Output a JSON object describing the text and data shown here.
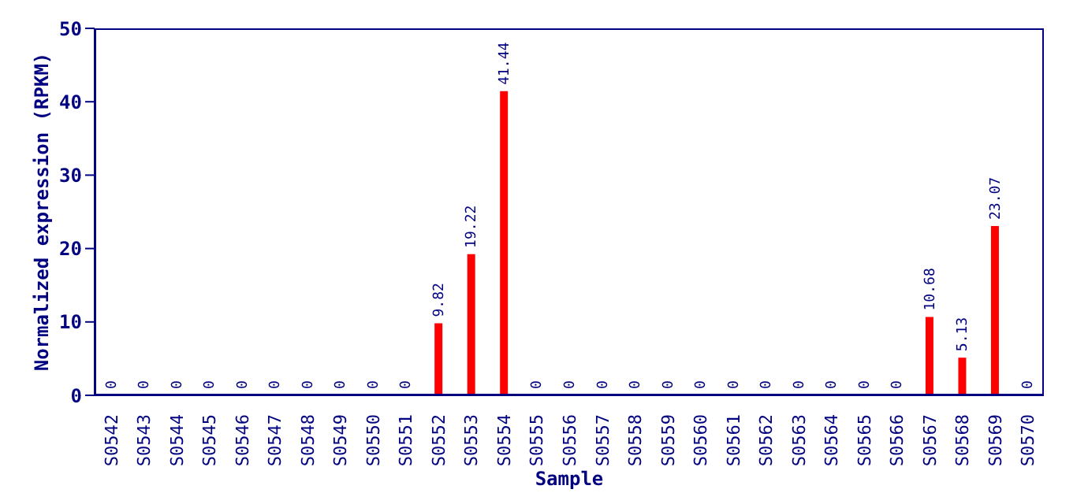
{
  "chart_data": {
    "type": "bar",
    "xlabel": "Sample",
    "ylabel": "Normalized expression (RPKM)",
    "categories": [
      "S0542",
      "S0543",
      "S0544",
      "S0545",
      "S0546",
      "S0547",
      "S0548",
      "S0549",
      "S0550",
      "S0551",
      "S0552",
      "S0553",
      "S0554",
      "S0555",
      "S0556",
      "S0557",
      "S0558",
      "S0559",
      "S0560",
      "S0561",
      "S0562",
      "S0563",
      "S0564",
      "S0565",
      "S0566",
      "S0567",
      "S0568",
      "S0569",
      "S0570"
    ],
    "values": [
      0,
      0,
      0,
      0,
      0,
      0,
      0,
      0,
      0,
      0,
      9.82,
      19.22,
      41.44,
      0,
      0,
      0,
      0,
      0,
      0,
      0,
      0,
      0,
      0,
      0,
      0,
      10.68,
      5.13,
      23.07,
      0
    ],
    "color": "#ff0000",
    "ylim": [
      0,
      50
    ],
    "yticks": [
      0,
      10,
      20,
      30,
      40,
      50
    ],
    "data_labels": true,
    "grid": false,
    "legend": false
  }
}
